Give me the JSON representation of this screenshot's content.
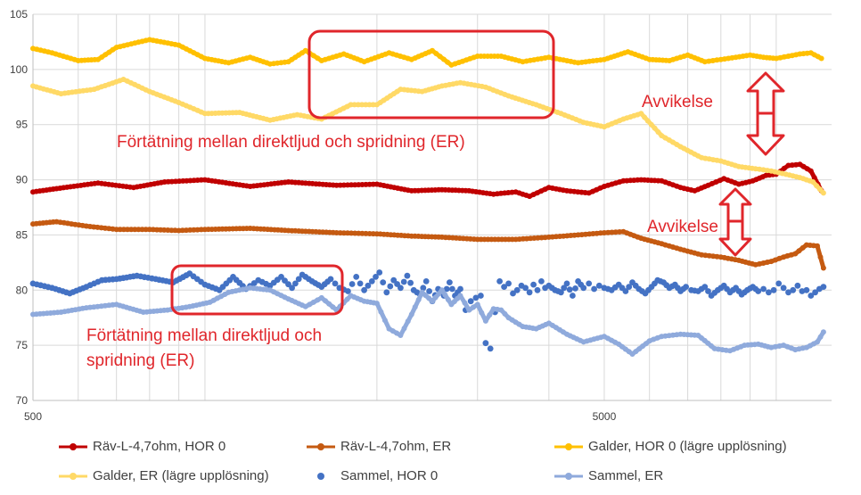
{
  "chart_data": {
    "type": "line",
    "x_scale": "log",
    "xlim": [
      500,
      12500
    ],
    "ylim": [
      70,
      105
    ],
    "x_ticks": [
      "500",
      "5000"
    ],
    "y_ticks": [
      "70",
      "75",
      "80",
      "85",
      "90",
      "95",
      "100",
      "105"
    ],
    "grid": true,
    "legend_position": "bottom",
    "series": [
      {
        "name": "Räv-L-4,7ohm, HOR 0",
        "color": "#c00000",
        "style": "line",
        "x": [
          500,
          550,
          650,
          750,
          850,
          1000,
          1200,
          1400,
          1700,
          2000,
          2300,
          2600,
          2900,
          3200,
          3500,
          3700,
          4000,
          4300,
          4700,
          5000,
          5400,
          5800,
          6300,
          6800,
          7200,
          7600,
          8100,
          8600,
          9100,
          9600,
          10000,
          10500,
          11000,
          11500,
          12000
        ],
        "y": [
          88.9,
          89.2,
          89.7,
          89.3,
          89.8,
          90.0,
          89.4,
          89.8,
          89.5,
          89.6,
          89.0,
          89.1,
          89.0,
          88.7,
          88.9,
          88.5,
          89.3,
          89.0,
          88.8,
          89.4,
          89.9,
          90.0,
          89.9,
          89.3,
          89.0,
          89.5,
          90.1,
          89.6,
          89.9,
          90.4,
          90.5,
          91.3,
          91.4,
          90.8,
          89.0
        ]
      },
      {
        "name": "Räv-L-4,7ohm, ER",
        "color": "#c55a11",
        "style": "line",
        "x": [
          500,
          550,
          620,
          700,
          800,
          900,
          1000,
          1200,
          1400,
          1700,
          2000,
          2300,
          2600,
          3000,
          3500,
          4000,
          4500,
          5000,
          5400,
          5800,
          6300,
          6800,
          7400,
          8000,
          8600,
          9200,
          9800,
          10300,
          10800,
          11300,
          11800,
          12100
        ],
        "y": [
          86.0,
          86.2,
          85.8,
          85.5,
          85.5,
          85.4,
          85.5,
          85.6,
          85.4,
          85.2,
          85.1,
          84.9,
          84.8,
          84.6,
          84.6,
          84.8,
          85.0,
          85.2,
          85.3,
          84.7,
          84.2,
          83.7,
          83.2,
          83.0,
          82.7,
          82.3,
          82.6,
          83.0,
          83.3,
          84.1,
          84.0,
          82.0
        ]
      },
      {
        "name": "Galder, HOR 0 (lägre upplösning)",
        "color": "#ffc000",
        "style": "line",
        "x": [
          500,
          540,
          600,
          650,
          700,
          800,
          900,
          1000,
          1100,
          1200,
          1300,
          1400,
          1500,
          1600,
          1750,
          1900,
          2100,
          2300,
          2500,
          2700,
          3000,
          3300,
          3600,
          4000,
          4500,
          5000,
          5500,
          6000,
          6500,
          7000,
          7500,
          8000,
          8500,
          9000,
          9500,
          10000,
          10500,
          11000,
          11500,
          12000
        ],
        "y": [
          101.9,
          101.5,
          100.8,
          100.9,
          102.0,
          102.7,
          102.2,
          101.0,
          100.6,
          101.1,
          100.5,
          100.7,
          101.7,
          100.8,
          101.4,
          100.7,
          101.5,
          100.9,
          101.7,
          100.4,
          101.2,
          101.2,
          100.7,
          101.1,
          100.6,
          100.9,
          101.6,
          100.9,
          100.8,
          101.3,
          100.7,
          100.9,
          101.1,
          101.3,
          101.1,
          101.0,
          101.2,
          101.4,
          101.5,
          101.0
        ]
      },
      {
        "name": "Galder, ER (lägre upplösning)",
        "color": "#ffd966",
        "style": "line",
        "x": [
          500,
          560,
          640,
          720,
          800,
          900,
          1000,
          1150,
          1300,
          1450,
          1600,
          1800,
          2000,
          2200,
          2400,
          2600,
          2800,
          3100,
          3400,
          3800,
          4200,
          4600,
          5000,
          5400,
          5800,
          6300,
          6800,
          7400,
          8000,
          8600,
          9200,
          9800,
          10400,
          11000,
          11600,
          12100
        ],
        "y": [
          98.5,
          97.8,
          98.2,
          99.1,
          98.0,
          97.0,
          96.0,
          96.1,
          95.4,
          95.9,
          95.5,
          96.8,
          96.8,
          98.2,
          98.0,
          98.5,
          98.8,
          98.4,
          97.6,
          96.8,
          96.0,
          95.2,
          94.8,
          95.5,
          96.0,
          94.0,
          93.0,
          92.0,
          91.7,
          91.2,
          91.0,
          90.8,
          90.5,
          90.2,
          89.8,
          88.8
        ]
      },
      {
        "name": "Sammel, HOR 0",
        "color": "#4472c4",
        "style": "dots",
        "x": [
          500,
          540,
          580,
          620,
          660,
          700,
          760,
          820,
          880,
          940,
          1000,
          1060,
          1120,
          1180,
          1240,
          1300,
          1360,
          1420,
          1480,
          1540,
          1600,
          1660,
          1720,
          1780,
          1840,
          1900,
          1960,
          2020,
          2080,
          2140,
          2200,
          2260,
          2320,
          2380,
          2440,
          2500,
          2560,
          2620,
          2680,
          2740,
          2800,
          2860,
          2920,
          2980,
          3040,
          3100,
          3160,
          3220,
          3280,
          3340,
          3400,
          3460,
          3520,
          3580,
          3640,
          3700,
          3760,
          3820,
          3880,
          3940,
          4000,
          4100,
          4200,
          4300,
          4400,
          4500,
          4600,
          4700,
          4800,
          4900,
          5000,
          5150,
          5300,
          5450,
          5600,
          5750,
          5900,
          6050,
          6200,
          6350,
          6500,
          6650,
          6800,
          6950,
          7100,
          7300,
          7500,
          7700,
          7900,
          8100,
          8300,
          8500,
          8700,
          8900,
          9100,
          9300,
          9500,
          9700,
          9900,
          10100,
          10300,
          10500,
          10700,
          10900,
          11100,
          11300,
          11500,
          11700,
          11900,
          12100
        ],
        "y": [
          80.6,
          80.2,
          79.7,
          80.3,
          80.9,
          81.0,
          81.3,
          81.0,
          80.7,
          81.5,
          80.5,
          80.0,
          81.2,
          80.1,
          80.9,
          80.4,
          81.2,
          80.2,
          81.4,
          80.8,
          80.3,
          81.0,
          80.2,
          79.9,
          81.2,
          80.0,
          80.8,
          81.6,
          79.8,
          80.9,
          80.2,
          81.3,
          80.0,
          79.6,
          80.8,
          79.0,
          80.1,
          79.5,
          80.7,
          79.5,
          80.1,
          78.2,
          79.0,
          79.3,
          79.5,
          75.2,
          74.7,
          78.0,
          80.8,
          80.3,
          80.6,
          79.7,
          80.0,
          80.4,
          80.2,
          79.8,
          80.5,
          80.0,
          80.8,
          80.2,
          80.4,
          80.0,
          79.8,
          80.6,
          79.5,
          80.8,
          80.2,
          80.6,
          80.1,
          80.4,
          80.2,
          80.0,
          80.5,
          79.9,
          80.7,
          80.1,
          79.7,
          80.3,
          80.9,
          80.7,
          80.2,
          80.5,
          79.9,
          80.3,
          80.0,
          79.9,
          80.3,
          79.5,
          80.0,
          80.4,
          79.8,
          80.2,
          79.6,
          80.0,
          80.3,
          79.9,
          80.1,
          79.8,
          80.0,
          80.6,
          80.2,
          79.8,
          80.0,
          80.4,
          79.9,
          80.0,
          79.5,
          79.8,
          80.1,
          80.3
        ]
      },
      {
        "name": "Sammel, ER",
        "color": "#8faadc",
        "style": "line",
        "x": [
          500,
          560,
          620,
          700,
          780,
          860,
          940,
          1020,
          1100,
          1200,
          1300,
          1400,
          1500,
          1600,
          1700,
          1800,
          1900,
          2000,
          2100,
          2200,
          2300,
          2400,
          2500,
          2600,
          2700,
          2800,
          2900,
          3000,
          3100,
          3200,
          3300,
          3400,
          3600,
          3800,
          4000,
          4300,
          4600,
          5000,
          5300,
          5600,
          6000,
          6300,
          6800,
          7300,
          7800,
          8300,
          8800,
          9300,
          9800,
          10300,
          10800,
          11300,
          11800,
          12100
        ],
        "y": [
          77.8,
          78.0,
          78.4,
          78.7,
          78.0,
          78.2,
          78.5,
          78.9,
          79.8,
          80.2,
          80.0,
          79.2,
          78.5,
          79.3,
          78.2,
          79.5,
          79.0,
          78.8,
          76.5,
          75.9,
          77.8,
          79.8,
          79.0,
          80.0,
          78.7,
          79.5,
          78.2,
          78.7,
          77.2,
          78.3,
          78.2,
          77.5,
          76.7,
          76.5,
          77.0,
          76.0,
          75.3,
          75.8,
          75.1,
          74.2,
          75.4,
          75.8,
          76.0,
          75.9,
          74.7,
          74.5,
          75.0,
          75.1,
          74.8,
          75.0,
          74.6,
          74.8,
          75.3,
          76.2
        ]
      }
    ]
  },
  "annotations": {
    "box1_text": "Förtätning mellan direktljud och spridning (ER)",
    "box2_line1": "Förtätning mellan direktljud och",
    "box2_line2": "spridning (ER)",
    "avvikelse1": "Avvikelse",
    "avvikelse2": "Avvikelse",
    "color": "#e0262b"
  }
}
